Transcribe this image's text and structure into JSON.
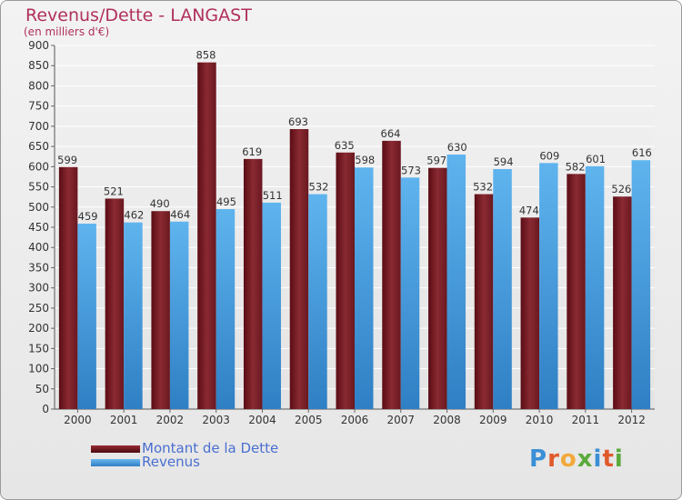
{
  "chart_data": {
    "type": "bar",
    "title": "Revenus/Dette - LANGAST",
    "subtitle": "(en milliers d'€)",
    "categories": [
      "2000",
      "2001",
      "2002",
      "2003",
      "2004",
      "2005",
      "2006",
      "2007",
      "2008",
      "2009",
      "2010",
      "2011",
      "2012"
    ],
    "series": [
      {
        "name": "Montant de la Dette",
        "color": "#7a1a22",
        "values": [
          599,
          521,
          490,
          858,
          619,
          693,
          635,
          664,
          597,
          532,
          474,
          582,
          526
        ]
      },
      {
        "name": "Revenus",
        "color": "#3f9de0",
        "values": [
          459,
          462,
          464,
          495,
          511,
          532,
          598,
          573,
          630,
          594,
          609,
          601,
          616
        ]
      }
    ],
    "ylim": [
      0,
      900
    ],
    "yticks": [
      0,
      50,
      100,
      150,
      200,
      250,
      300,
      350,
      400,
      450,
      500,
      550,
      600,
      650,
      700,
      750,
      800,
      850,
      900
    ],
    "grid": true,
    "legend_position": "bottom-left"
  },
  "logo": {
    "text": "Proxiti"
  }
}
